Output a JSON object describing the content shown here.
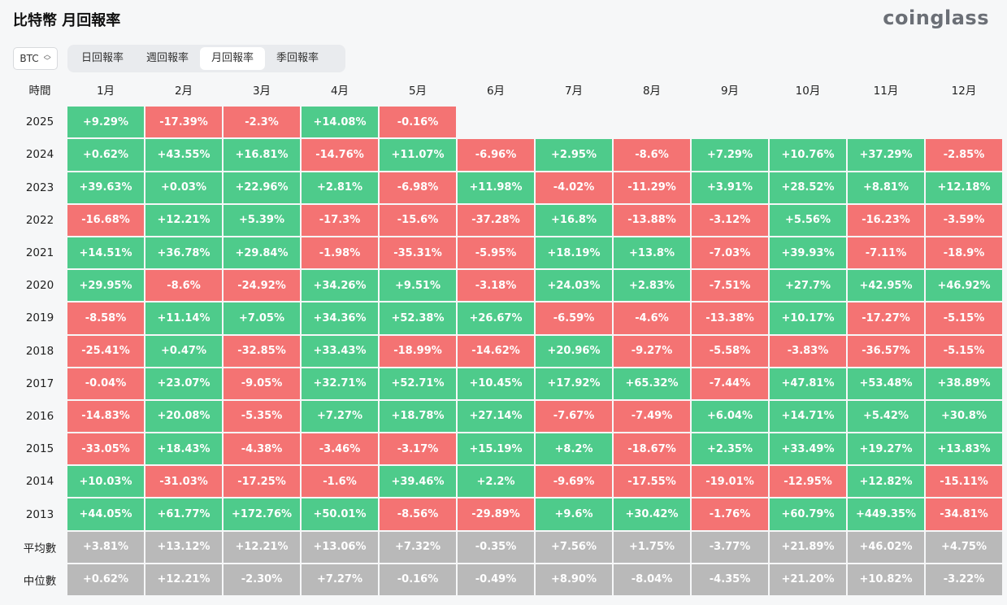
{
  "page": {
    "title": "比特幣 月回報率",
    "logo": "coinglass"
  },
  "asset_select": {
    "value": "BTC"
  },
  "tabs": [
    {
      "label": "日回報率",
      "active": false
    },
    {
      "label": "週回報率",
      "active": false
    },
    {
      "label": "月回報率",
      "active": true
    },
    {
      "label": "季回報率",
      "active": false
    }
  ],
  "colors": {
    "positive": "#4ecb8b",
    "negative": "#f47373",
    "stat": "#b9b9b9"
  },
  "table": {
    "corner_label": "時間",
    "months": [
      "1月",
      "2月",
      "3月",
      "4月",
      "5月",
      "6月",
      "7月",
      "8月",
      "9月",
      "10月",
      "11月",
      "12月"
    ],
    "rows": [
      {
        "label": "2025",
        "values": [
          "+9.29%",
          "-17.39%",
          "-2.3%",
          "+14.08%",
          "-0.16%",
          "",
          "",
          "",
          "",
          "",
          "",
          ""
        ]
      },
      {
        "label": "2024",
        "values": [
          "+0.62%",
          "+43.55%",
          "+16.81%",
          "-14.76%",
          "+11.07%",
          "-6.96%",
          "+2.95%",
          "-8.6%",
          "+7.29%",
          "+10.76%",
          "+37.29%",
          "-2.85%"
        ]
      },
      {
        "label": "2023",
        "values": [
          "+39.63%",
          "+0.03%",
          "+22.96%",
          "+2.81%",
          "-6.98%",
          "+11.98%",
          "-4.02%",
          "-11.29%",
          "+3.91%",
          "+28.52%",
          "+8.81%",
          "+12.18%"
        ]
      },
      {
        "label": "2022",
        "values": [
          "-16.68%",
          "+12.21%",
          "+5.39%",
          "-17.3%",
          "-15.6%",
          "-37.28%",
          "+16.8%",
          "-13.88%",
          "-3.12%",
          "+5.56%",
          "-16.23%",
          "-3.59%"
        ]
      },
      {
        "label": "2021",
        "values": [
          "+14.51%",
          "+36.78%",
          "+29.84%",
          "-1.98%",
          "-35.31%",
          "-5.95%",
          "+18.19%",
          "+13.8%",
          "-7.03%",
          "+39.93%",
          "-7.11%",
          "-18.9%"
        ]
      },
      {
        "label": "2020",
        "values": [
          "+29.95%",
          "-8.6%",
          "-24.92%",
          "+34.26%",
          "+9.51%",
          "-3.18%",
          "+24.03%",
          "+2.83%",
          "-7.51%",
          "+27.7%",
          "+42.95%",
          "+46.92%"
        ]
      },
      {
        "label": "2019",
        "values": [
          "-8.58%",
          "+11.14%",
          "+7.05%",
          "+34.36%",
          "+52.38%",
          "+26.67%",
          "-6.59%",
          "-4.6%",
          "-13.38%",
          "+10.17%",
          "-17.27%",
          "-5.15%"
        ]
      },
      {
        "label": "2018",
        "values": [
          "-25.41%",
          "+0.47%",
          "-32.85%",
          "+33.43%",
          "-18.99%",
          "-14.62%",
          "+20.96%",
          "-9.27%",
          "-5.58%",
          "-3.83%",
          "-36.57%",
          "-5.15%"
        ]
      },
      {
        "label": "2017",
        "values": [
          "-0.04%",
          "+23.07%",
          "-9.05%",
          "+32.71%",
          "+52.71%",
          "+10.45%",
          "+17.92%",
          "+65.32%",
          "-7.44%",
          "+47.81%",
          "+53.48%",
          "+38.89%"
        ]
      },
      {
        "label": "2016",
        "values": [
          "-14.83%",
          "+20.08%",
          "-5.35%",
          "+7.27%",
          "+18.78%",
          "+27.14%",
          "-7.67%",
          "-7.49%",
          "+6.04%",
          "+14.71%",
          "+5.42%",
          "+30.8%"
        ]
      },
      {
        "label": "2015",
        "values": [
          "-33.05%",
          "+18.43%",
          "-4.38%",
          "-3.46%",
          "-3.17%",
          "+15.19%",
          "+8.2%",
          "-18.67%",
          "+2.35%",
          "+33.49%",
          "+19.27%",
          "+13.83%"
        ]
      },
      {
        "label": "2014",
        "values": [
          "+10.03%",
          "-31.03%",
          "-17.25%",
          "-1.6%",
          "+39.46%",
          "+2.2%",
          "-9.69%",
          "-17.55%",
          "-19.01%",
          "-12.95%",
          "+12.82%",
          "-15.11%"
        ]
      },
      {
        "label": "2013",
        "values": [
          "+44.05%",
          "+61.77%",
          "+172.76%",
          "+50.01%",
          "-8.56%",
          "-29.89%",
          "+9.6%",
          "+30.42%",
          "-1.76%",
          "+60.79%",
          "+449.35%",
          "-34.81%"
        ]
      }
    ],
    "stats": [
      {
        "label": "平均數",
        "values": [
          "+3.81%",
          "+13.12%",
          "+12.21%",
          "+13.06%",
          "+7.32%",
          "-0.35%",
          "+7.56%",
          "+1.75%",
          "-3.77%",
          "+21.89%",
          "+46.02%",
          "+4.75%"
        ]
      },
      {
        "label": "中位數",
        "values": [
          "+0.62%",
          "+12.21%",
          "-2.30%",
          "+7.27%",
          "-0.16%",
          "-0.49%",
          "+8.90%",
          "-8.04%",
          "-4.35%",
          "+21.20%",
          "+10.82%",
          "-3.22%"
        ]
      }
    ]
  }
}
